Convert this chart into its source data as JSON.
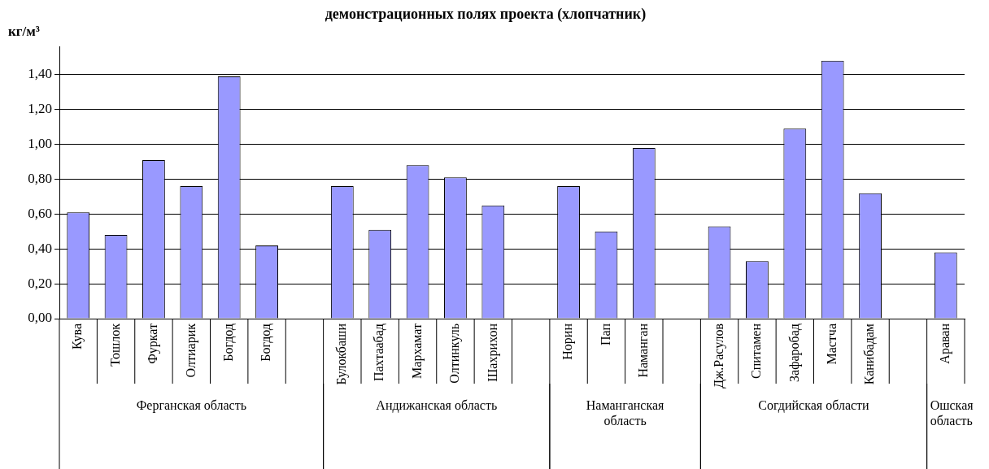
{
  "chart_data": {
    "type": "bar",
    "title": "демонстрационных полях проекта (хлопчатник)",
    "ylabel": "кг/м³",
    "categories": [
      "Кува",
      "Тошлок",
      "Фуркат",
      "Олтиарик",
      "Богдод",
      "Богдод",
      null,
      "Булокбаши",
      "Пахтаабад",
      "Мархамат",
      "Олтинкуль",
      "Шахрихон",
      null,
      "Норин",
      "Пап",
      "Наманган",
      null,
      "Дж.Расулов",
      "Спитамен",
      "Зафаробад",
      "Мастча",
      "Канибадам",
      null,
      "Араван"
    ],
    "values": [
      0.61,
      0.48,
      0.91,
      0.76,
      1.39,
      0.42,
      null,
      0.76,
      0.51,
      0.88,
      0.81,
      0.65,
      null,
      0.76,
      0.5,
      0.98,
      null,
      0.53,
      0.33,
      1.09,
      1.48,
      0.72,
      null,
      0.38
    ],
    "color": "#9999ff",
    "ylim": [
      0,
      1.56
    ],
    "yticks": [
      {
        "value": 0,
        "label": "0,00"
      },
      {
        "value": 0.2,
        "label": "0,20"
      },
      {
        "value": 0.4,
        "label": "0,40"
      },
      {
        "value": 0.6,
        "label": "0,60"
      },
      {
        "value": 0.8,
        "label": "0,80"
      },
      {
        "value": 1,
        "label": "1,00"
      },
      {
        "value": 1.2,
        "label": "1,20"
      },
      {
        "value": 1.4,
        "label": "1,40"
      }
    ],
    "grid": "y",
    "legend": false,
    "annotations": [
      "Ферганская область",
      "Андижанская область",
      "Наманганская область",
      "Согдийская области",
      "Ошская область"
    ]
  }
}
